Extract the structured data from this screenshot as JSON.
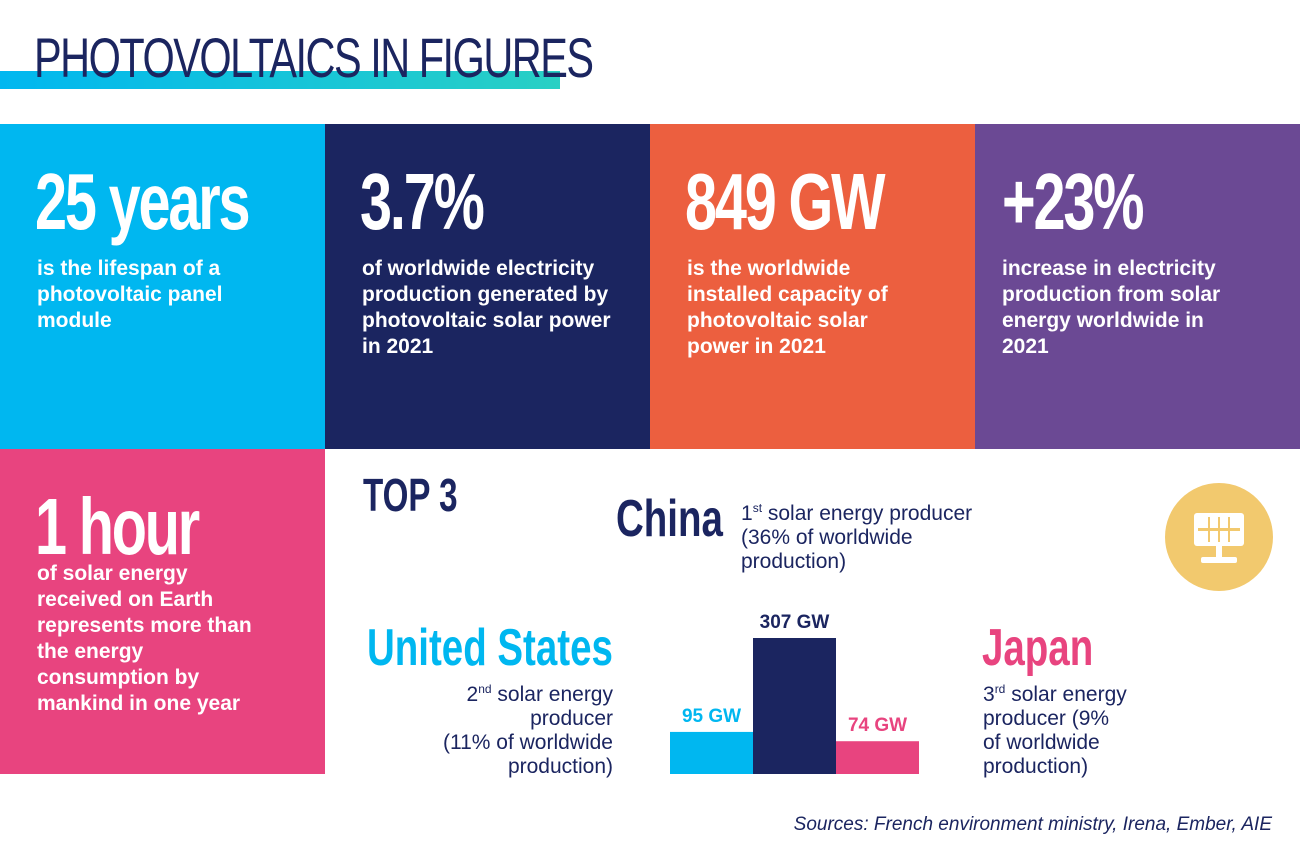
{
  "header": {
    "title": "PHOTOVOLTAICS IN FIGURES"
  },
  "colors": {
    "navy": "#1b2560",
    "cyan": "#00b7f0",
    "orange": "#ec5f3f",
    "purple": "#6b4994",
    "pink": "#e8447f",
    "teal": "#29d0c4",
    "yellow": "#f2c96e"
  },
  "stats": [
    {
      "big": "25 years",
      "desc": "is the lifespan of a photovoltaic panel module"
    },
    {
      "big": "3.7%",
      "desc": "of worldwide electricity production generated by photovoltaic solar power in 2021"
    },
    {
      "big": "849 GW",
      "desc": "is the worldwide installed capacity of photovoltaic solar power in 2021"
    },
    {
      "big": "+23%",
      "desc": "increase in electricity production from solar energy worldwide in 2021"
    },
    {
      "big": "1 hour",
      "desc": "of solar energy received on Earth represents more than the energy consumption by mankind in one year"
    }
  ],
  "top3": {
    "heading": "TOP 3",
    "china": {
      "name": "China",
      "rank_num": "1",
      "rank_sup": "st",
      "line1": " solar energy producer",
      "line2": "(36% of worldwide",
      "line3": "production)"
    },
    "us": {
      "name": "United States",
      "rank_num": "2",
      "rank_sup": "nd",
      "line1": " solar energy",
      "line2": "producer",
      "line3": "(11% of worldwide",
      "line4": "production)"
    },
    "japan": {
      "name": "Japan",
      "rank_num": "3",
      "rank_sup": "rd",
      "line1": " solar energy",
      "line2": "producer (9%",
      "line3": "of worldwide",
      "line4": "production)"
    },
    "icon": "solar-panel-icon"
  },
  "chart_data": {
    "type": "bar",
    "categories": [
      "United States",
      "China",
      "Japan"
    ],
    "values": [
      95,
      307,
      74
    ],
    "value_labels": [
      "95 GW",
      "307 GW",
      "74 GW"
    ],
    "unit": "GW",
    "colors": [
      "#00b7f0",
      "#1b2560",
      "#e8447f"
    ]
  },
  "footer": {
    "sources": "Sources: French environment ministry, Irena, Ember, AIE"
  }
}
